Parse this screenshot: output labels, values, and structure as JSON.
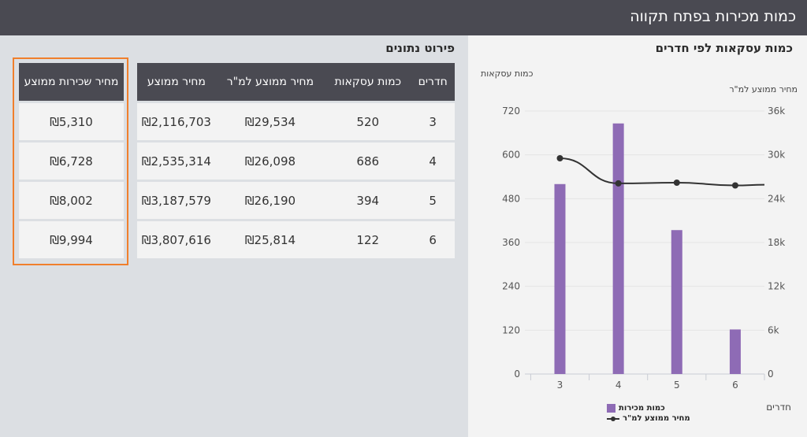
{
  "header": {
    "title": "כמות מכירות בפתח תקווה"
  },
  "table_section": {
    "title": "פירוט נתונים",
    "main_table": {
      "headers": [
        "מחיר ממוצע",
        "מחיר ממוצע למ\"ר",
        "כמות עסקאות",
        "חדרים"
      ],
      "rows": [
        [
          "₪2,116,703",
          "₪29,534",
          "520",
          "3"
        ],
        [
          "₪2,535,314",
          "₪26,098",
          "686",
          "4"
        ],
        [
          "₪3,187,579",
          "₪26,190",
          "394",
          "5"
        ],
        [
          "₪3,807,616",
          "₪25,814",
          "122",
          "6"
        ]
      ]
    },
    "rent_table": {
      "header": "מחיר שכירות ממוצע",
      "rows": [
        "₪5,310",
        "₪6,728",
        "₪8,002",
        "₪9,994"
      ]
    }
  },
  "chart_section": {
    "title": "כמות עסקאות לפי חדרים",
    "left_axis_label": "כמות עסקאות",
    "right_axis_label": "מחיר ממוצע למ\"ר",
    "x_axis_label": "חדרים"
  },
  "chart_data": {
    "type": "bar",
    "categories": [
      "3",
      "4",
      "5",
      "6"
    ],
    "series": [
      {
        "name": "כמות מכירות",
        "type": "bar",
        "axis": "left",
        "values": [
          520,
          686,
          394,
          122
        ],
        "color": "#8e6bb5"
      },
      {
        "name": "מחיר ממוצע למ\"ר",
        "type": "line",
        "axis": "right",
        "values": [
          29534,
          26098,
          26190,
          25814
        ],
        "color": "#333333"
      }
    ],
    "left_ylim": [
      0,
      720
    ],
    "left_ticks": [
      "0",
      "120",
      "240",
      "360",
      "480",
      "600",
      "720"
    ],
    "right_ylim": [
      0,
      36000
    ],
    "right_ticks": [
      "0",
      "6k",
      "12k",
      "18k",
      "24k",
      "30k",
      "36k"
    ],
    "xlabel": "חדרים",
    "ylabel_left": "כמות עסקאות",
    "ylabel_right": "מחיר ממוצע למ\"ר",
    "grid": true,
    "legend": "bottom"
  },
  "colors": {
    "header_bg": "#4a4a52",
    "bar": "#8e6bb5",
    "highlight": "#f07f2c"
  }
}
